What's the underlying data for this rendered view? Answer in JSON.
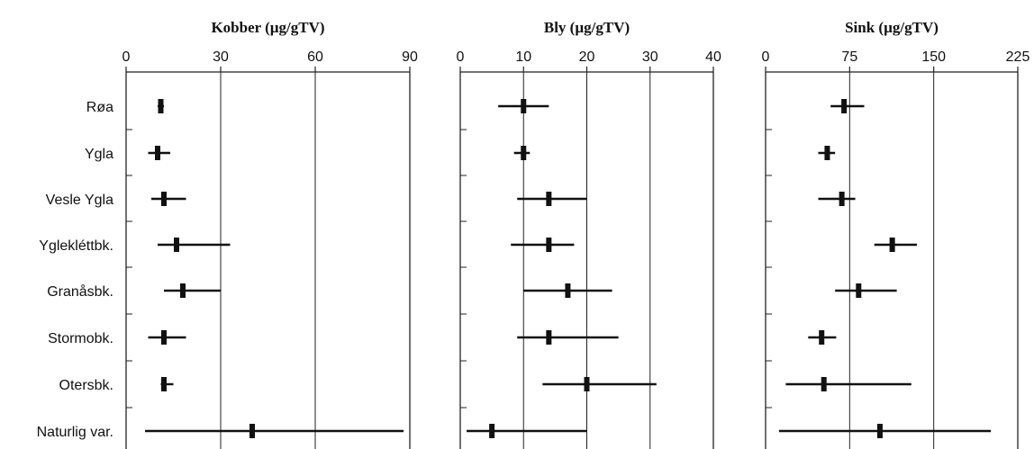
{
  "chart_data": {
    "type": "range-dot",
    "categories": [
      "Røa",
      "Ygla",
      "Vesle Ygla",
      "Yglekléttbk.",
      "Granåsbk.",
      "Stormobk.",
      "Otersbk.",
      "Naturlig var."
    ],
    "panels": [
      {
        "title": "Kobber (µg/gTV)",
        "xlim": [
          0,
          90
        ],
        "ticks": [
          0,
          30,
          60,
          90
        ],
        "grid": true,
        "points": [
          {
            "center": 11,
            "low": 10,
            "high": 12
          },
          {
            "center": 10,
            "low": 7,
            "high": 14
          },
          {
            "center": 12,
            "low": 8,
            "high": 19
          },
          {
            "center": 16,
            "low": 10,
            "high": 33
          },
          {
            "center": 18,
            "low": 12,
            "high": 30
          },
          {
            "center": 12,
            "low": 7,
            "high": 19
          },
          {
            "center": 12,
            "low": 11,
            "high": 15
          },
          {
            "center": 40,
            "low": 6,
            "high": 88
          }
        ]
      },
      {
        "title": "Bly (µg/gTV)",
        "xlim": [
          0,
          40
        ],
        "ticks": [
          0,
          10,
          20,
          30,
          40
        ],
        "grid": true,
        "points": [
          {
            "center": 10,
            "low": 6,
            "high": 14
          },
          {
            "center": 10,
            "low": 8.5,
            "high": 11
          },
          {
            "center": 14,
            "low": 9,
            "high": 20
          },
          {
            "center": 14,
            "low": 8,
            "high": 18
          },
          {
            "center": 17,
            "low": 10,
            "high": 24
          },
          {
            "center": 14,
            "low": 9,
            "high": 25
          },
          {
            "center": 20,
            "low": 13,
            "high": 31
          },
          {
            "center": 5,
            "low": 1,
            "high": 20
          }
        ]
      },
      {
        "title": "Sink (µg/gTV)",
        "xlim": [
          0,
          225
        ],
        "ticks": [
          0,
          75,
          150,
          225
        ],
        "grid": true,
        "points": [
          {
            "center": 70,
            "low": 58,
            "high": 88
          },
          {
            "center": 55,
            "low": 47,
            "high": 62
          },
          {
            "center": 68,
            "low": 47,
            "high": 80
          },
          {
            "center": 113,
            "low": 97,
            "high": 135
          },
          {
            "center": 83,
            "low": 62,
            "high": 117
          },
          {
            "center": 50,
            "low": 38,
            "high": 63
          },
          {
            "center": 52,
            "low": 18,
            "high": 130
          },
          {
            "center": 102,
            "low": 12,
            "high": 201
          }
        ]
      }
    ]
  }
}
